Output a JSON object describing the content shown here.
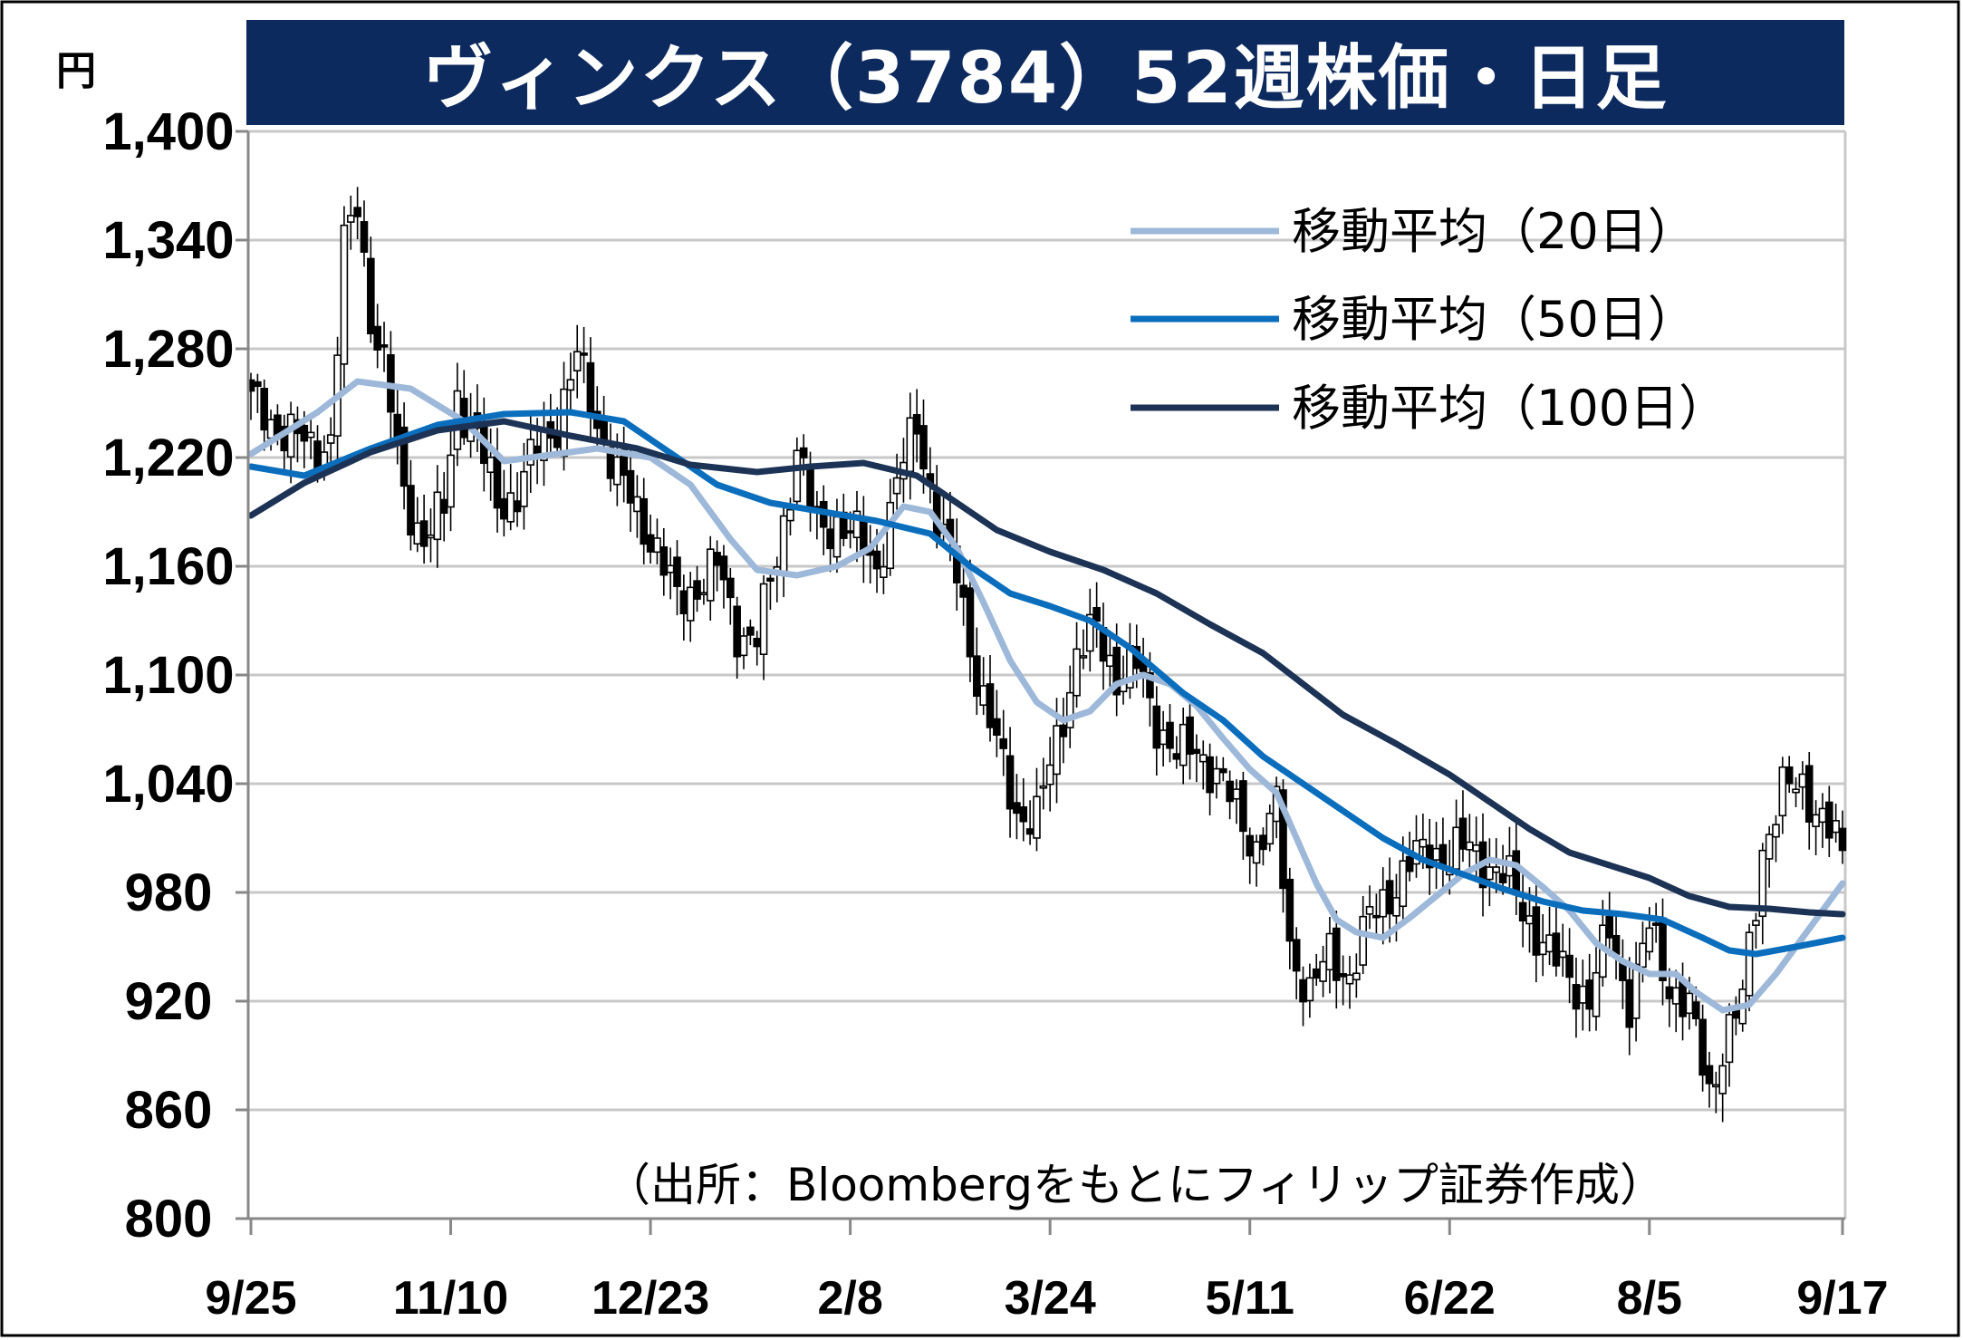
{
  "title": "ヴィンクス（3784）52週株価・日足",
  "unit": "円",
  "source": "（出所：Bloombergをもとにフィリップ証券作成）",
  "chart_data": {
    "type": "candlestick",
    "ylim": [
      800,
      1400
    ],
    "yticks": [
      "1,400",
      "1,340",
      "1,280",
      "1,220",
      "1,160",
      "1,100",
      "1,040",
      "980",
      "920",
      "860",
      "800"
    ],
    "ytick_values": [
      1400,
      1340,
      1280,
      1220,
      1160,
      1100,
      1040,
      980,
      920,
      860,
      800
    ],
    "xticks": [
      "9/25",
      "11/10",
      "12/23",
      "2/8",
      "3/24",
      "5/11",
      "6/22",
      "8/5",
      "9/17"
    ],
    "grid": true,
    "legend_position": "top-right",
    "colors": {
      "title_bg": "#0d2a5e",
      "ma20": "#9db8d9",
      "ma50": "#0a6ebd",
      "ma100": "#1c3356",
      "grid": "#c8c8c8",
      "candle": "#000000"
    },
    "ohlc_anchors": [
      [
        0,
        1250
      ],
      [
        5,
        1235
      ],
      [
        9,
        1225
      ],
      [
        12,
        1230
      ],
      [
        14,
        1335
      ],
      [
        16,
        1360
      ],
      [
        18,
        1300
      ],
      [
        20,
        1270
      ],
      [
        23,
        1200
      ],
      [
        26,
        1175
      ],
      [
        29,
        1190
      ],
      [
        31,
        1255
      ],
      [
        34,
        1230
      ],
      [
        37,
        1195
      ],
      [
        40,
        1200
      ],
      [
        43,
        1225
      ],
      [
        46,
        1240
      ],
      [
        49,
        1275
      ],
      [
        52,
        1240
      ],
      [
        55,
        1210
      ],
      [
        58,
        1190
      ],
      [
        61,
        1170
      ],
      [
        64,
        1140
      ],
      [
        67,
        1150
      ],
      [
        70,
        1160
      ],
      [
        73,
        1125
      ],
      [
        76,
        1120
      ],
      [
        79,
        1165
      ],
      [
        82,
        1225
      ],
      [
        85,
        1180
      ],
      [
        88,
        1185
      ],
      [
        91,
        1175
      ],
      [
        94,
        1160
      ],
      [
        97,
        1205
      ],
      [
        100,
        1240
      ],
      [
        103,
        1185
      ],
      [
        106,
        1155
      ],
      [
        109,
        1100
      ],
      [
        112,
        1060
      ],
      [
        115,
        1025
      ],
      [
        118,
        1020
      ],
      [
        121,
        1065
      ],
      [
        124,
        1110
      ],
      [
        127,
        1125
      ],
      [
        130,
        1100
      ],
      [
        133,
        1105
      ],
      [
        136,
        1075
      ],
      [
        139,
        1055
      ],
      [
        142,
        1060
      ],
      [
        145,
        1045
      ],
      [
        148,
        1025
      ],
      [
        151,
        1005
      ],
      [
        154,
        1025
      ],
      [
        156,
        950
      ],
      [
        159,
        925
      ],
      [
        162,
        945
      ],
      [
        165,
        935
      ],
      [
        168,
        965
      ],
      [
        171,
        980
      ],
      [
        174,
        995
      ],
      [
        177,
        1005
      ],
      [
        180,
        1000
      ],
      [
        183,
        1005
      ],
      [
        186,
        995
      ],
      [
        189,
        985
      ],
      [
        192,
        965
      ],
      [
        195,
        945
      ],
      [
        198,
        935
      ],
      [
        201,
        920
      ],
      [
        204,
        960
      ],
      [
        207,
        920
      ],
      [
        210,
        960
      ],
      [
        213,
        930
      ],
      [
        216,
        915
      ],
      [
        219,
        870
      ],
      [
        221,
        895
      ],
      [
        224,
        920
      ],
      [
        227,
        1005
      ],
      [
        230,
        1035
      ],
      [
        233,
        1040
      ],
      [
        236,
        1020
      ],
      [
        239,
        1000
      ]
    ],
    "series": [
      {
        "name": "移動平均（20日）",
        "points": [
          [
            0,
            1222
          ],
          [
            10,
            1245
          ],
          [
            16,
            1262
          ],
          [
            24,
            1258
          ],
          [
            32,
            1240
          ],
          [
            38,
            1218
          ],
          [
            46,
            1222
          ],
          [
            52,
            1225
          ],
          [
            60,
            1220
          ],
          [
            66,
            1205
          ],
          [
            72,
            1175
          ],
          [
            76,
            1158
          ],
          [
            82,
            1155
          ],
          [
            88,
            1160
          ],
          [
            93,
            1170
          ],
          [
            98,
            1193
          ],
          [
            102,
            1190
          ],
          [
            106,
            1170
          ],
          [
            110,
            1140
          ],
          [
            114,
            1108
          ],
          [
            118,
            1085
          ],
          [
            122,
            1075
          ],
          [
            126,
            1080
          ],
          [
            130,
            1095
          ],
          [
            134,
            1100
          ],
          [
            138,
            1095
          ],
          [
            142,
            1083
          ],
          [
            146,
            1065
          ],
          [
            150,
            1048
          ],
          [
            154,
            1035
          ],
          [
            157,
            1010
          ],
          [
            160,
            985
          ],
          [
            163,
            965
          ],
          [
            166,
            958
          ],
          [
            170,
            955
          ],
          [
            174,
            966
          ],
          [
            178,
            978
          ],
          [
            182,
            990
          ],
          [
            186,
            998
          ],
          [
            190,
            995
          ],
          [
            194,
            983
          ],
          [
            198,
            970
          ],
          [
            202,
            952
          ],
          [
            206,
            942
          ],
          [
            210,
            935
          ],
          [
            214,
            935
          ],
          [
            217,
            925
          ],
          [
            221,
            915
          ],
          [
            225,
            918
          ],
          [
            229,
            935
          ],
          [
            233,
            955
          ],
          [
            237,
            975
          ],
          [
            239,
            985
          ]
        ]
      },
      {
        "name": "移動平均（50日）",
        "points": [
          [
            0,
            1215
          ],
          [
            8,
            1210
          ],
          [
            18,
            1225
          ],
          [
            28,
            1238
          ],
          [
            38,
            1244
          ],
          [
            48,
            1245
          ],
          [
            56,
            1240
          ],
          [
            62,
            1225
          ],
          [
            70,
            1205
          ],
          [
            78,
            1195
          ],
          [
            86,
            1190
          ],
          [
            94,
            1185
          ],
          [
            102,
            1178
          ],
          [
            108,
            1160
          ],
          [
            114,
            1145
          ],
          [
            120,
            1138
          ],
          [
            126,
            1130
          ],
          [
            132,
            1115
          ],
          [
            140,
            1090
          ],
          [
            146,
            1075
          ],
          [
            152,
            1055
          ],
          [
            158,
            1040
          ],
          [
            164,
            1025
          ],
          [
            170,
            1010
          ],
          [
            176,
            998
          ],
          [
            182,
            990
          ],
          [
            188,
            982
          ],
          [
            194,
            975
          ],
          [
            200,
            970
          ],
          [
            206,
            968
          ],
          [
            212,
            965
          ],
          [
            218,
            955
          ],
          [
            222,
            948
          ],
          [
            226,
            946
          ],
          [
            232,
            950
          ],
          [
            239,
            955
          ]
        ]
      },
      {
        "name": "移動平均（100日）",
        "points": [
          [
            0,
            1188
          ],
          [
            8,
            1206
          ],
          [
            18,
            1223
          ],
          [
            28,
            1235
          ],
          [
            38,
            1240
          ],
          [
            48,
            1232
          ],
          [
            58,
            1225
          ],
          [
            66,
            1216
          ],
          [
            76,
            1212
          ],
          [
            84,
            1215
          ],
          [
            92,
            1217
          ],
          [
            100,
            1210
          ],
          [
            106,
            1195
          ],
          [
            112,
            1180
          ],
          [
            120,
            1168
          ],
          [
            128,
            1158
          ],
          [
            136,
            1145
          ],
          [
            144,
            1128
          ],
          [
            152,
            1112
          ],
          [
            158,
            1095
          ],
          [
            164,
            1078
          ],
          [
            172,
            1062
          ],
          [
            180,
            1045
          ],
          [
            186,
            1030
          ],
          [
            192,
            1015
          ],
          [
            198,
            1002
          ],
          [
            204,
            995
          ],
          [
            210,
            988
          ],
          [
            216,
            978
          ],
          [
            222,
            972
          ],
          [
            228,
            971
          ],
          [
            234,
            969
          ],
          [
            239,
            968
          ]
        ]
      }
    ]
  }
}
